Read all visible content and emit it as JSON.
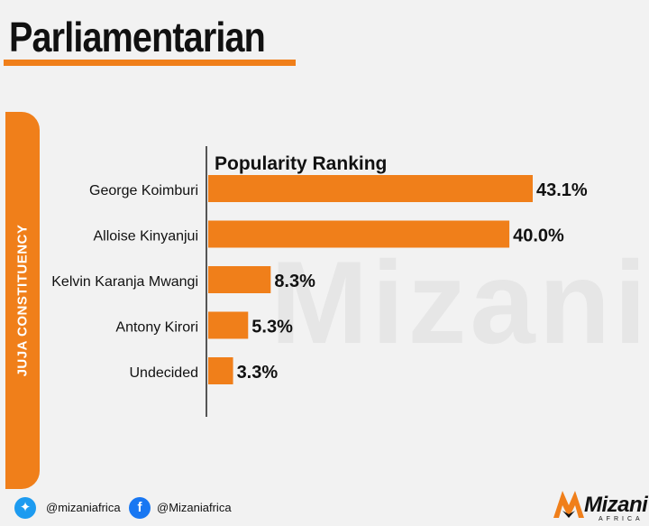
{
  "header": {
    "title": "Parliamentarian"
  },
  "side_tab": {
    "label": "JUJA CONSTITUENCY"
  },
  "watermark": {
    "text": "Mizani"
  },
  "chart_data": {
    "type": "bar",
    "orientation": "horizontal",
    "title": "Popularity Ranking",
    "categories": [
      "George Koimburi",
      "Alloise Kinyanjui",
      "Kelvin Karanja Mwangi",
      "Antony Kirori",
      "Undecided"
    ],
    "values": [
      43.1,
      40.0,
      8.3,
      5.3,
      3.3
    ],
    "value_labels": [
      "43.1%",
      "40.0%",
      "8.3%",
      "5.3%",
      "3.3%"
    ],
    "xlim": [
      0,
      43.1
    ],
    "grid": false,
    "bar_color": "#f07f1a"
  },
  "footer": {
    "twitter_handle": "@mizaniafrica",
    "facebook_handle": "@Mizaniafrica",
    "twitter_icon": "twitter-icon",
    "facebook_icon": "facebook-icon"
  },
  "logo": {
    "name": "Mizani",
    "sub": "AFRICA"
  },
  "colors": {
    "accent": "#f07f1a",
    "twitter": "#1d9bf0",
    "facebook": "#1877f2"
  }
}
